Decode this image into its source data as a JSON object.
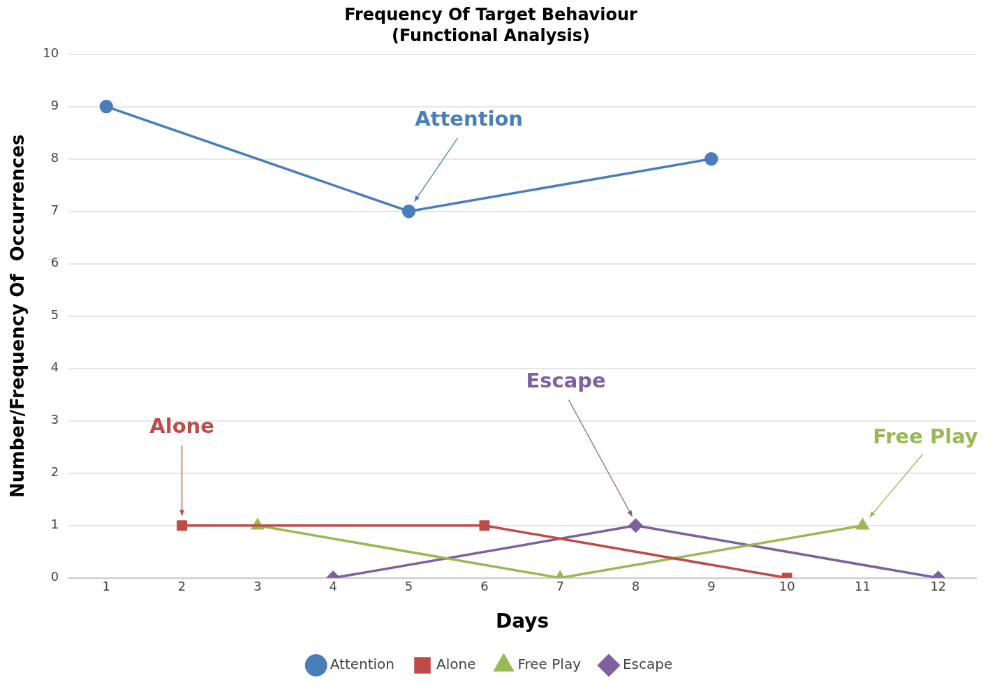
{
  "chart_data": {
    "type": "line",
    "title": "Frequency Of Target Behaviour",
    "subtitle": "(Functional Analysis)",
    "xlabel": "Days",
    "ylabel": "Number/Frequency Of  Occurrences",
    "xlim": [
      0.5,
      12.5
    ],
    "xticks": [
      1,
      2,
      3,
      4,
      5,
      6,
      7,
      8,
      9,
      10,
      11,
      12
    ],
    "ylim": [
      0,
      10
    ],
    "yticks": [
      0,
      1,
      2,
      3,
      4,
      5,
      6,
      7,
      8,
      9,
      10
    ],
    "grid": "y",
    "legend": "bottom",
    "series": [
      {
        "name": "Attention",
        "color": "#4a7ebb",
        "marker": "circle",
        "x": [
          1,
          5,
          9
        ],
        "values": [
          9,
          7,
          8
        ]
      },
      {
        "name": "Alone",
        "color": "#be4b48",
        "marker": "square",
        "x": [
          2,
          6,
          10
        ],
        "values": [
          1,
          1,
          0
        ]
      },
      {
        "name": "Free Play",
        "color": "#98b954",
        "marker": "triangle",
        "x": [
          3,
          7,
          11
        ],
        "values": [
          1,
          0,
          1
        ]
      },
      {
        "name": "Escape",
        "color": "#7d60a0",
        "marker": "diamond",
        "x": [
          4,
          8,
          12
        ],
        "values": [
          0,
          1,
          0
        ]
      }
    ],
    "annotations": [
      "Attention",
      "Alone",
      "Free Play",
      "Escape"
    ]
  }
}
